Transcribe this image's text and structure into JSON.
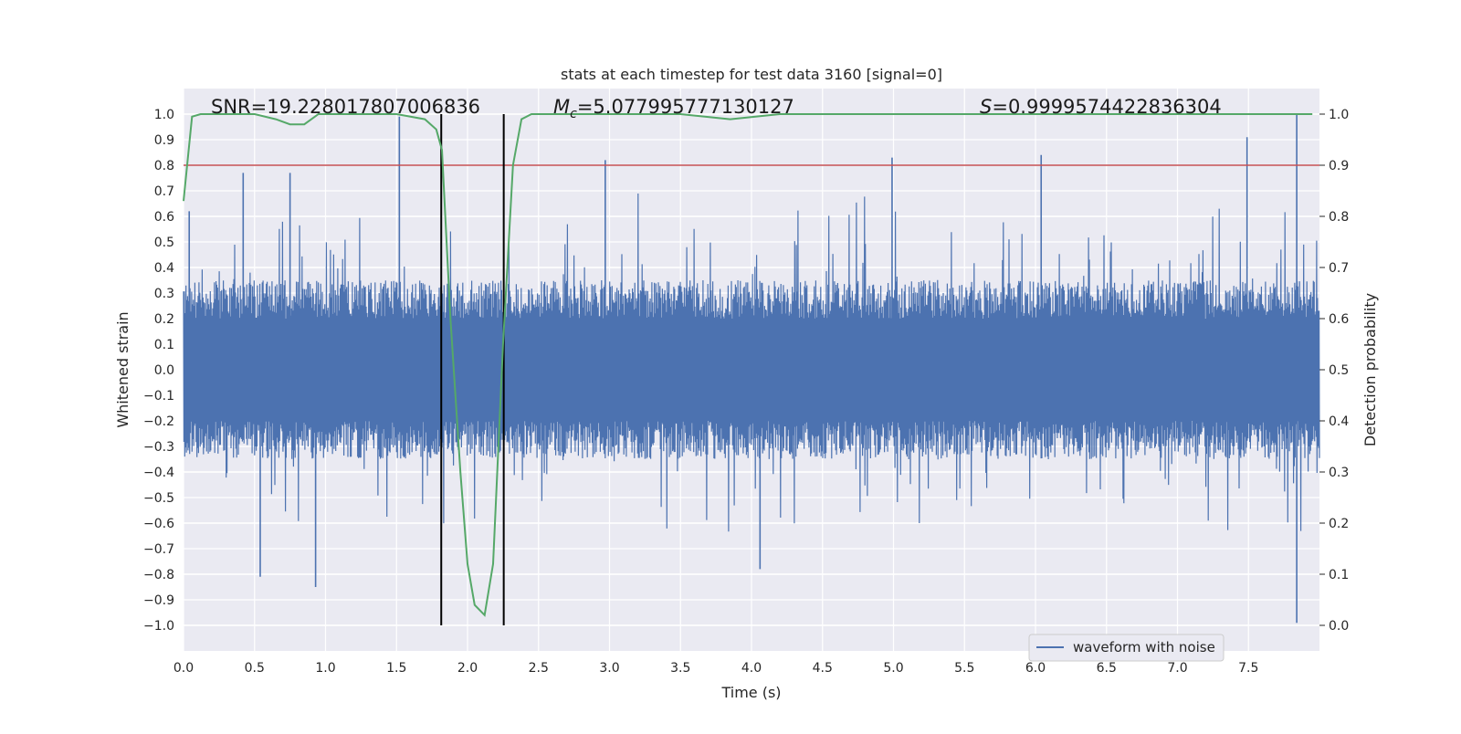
{
  "chart_data": {
    "type": "line",
    "title": "stats at each timestep for test data 3160 [signal=0]",
    "xlabel": "Time (s)",
    "ylabel_left": "Whitened strain",
    "ylabel_right": "Detection probability",
    "xlim": [
      0.0,
      8.0
    ],
    "ylim_left": [
      -1.1,
      1.1
    ],
    "ylim_right": [
      -0.05,
      1.05
    ],
    "x_ticks": [
      0.0,
      0.5,
      1.0,
      1.5,
      2.0,
      2.5,
      3.0,
      3.5,
      4.0,
      4.5,
      5.0,
      5.5,
      6.0,
      6.5,
      7.0,
      7.5
    ],
    "x_tick_labels": [
      "0.0",
      "0.5",
      "1.0",
      "1.5",
      "2.0",
      "2.5",
      "3.0",
      "3.5",
      "4.0",
      "4.5",
      "5.0",
      "5.5",
      "6.0",
      "6.5",
      "7.0",
      "7.5"
    ],
    "y_left_ticks": [
      1.0,
      0.9,
      0.8,
      0.7,
      0.6,
      0.5,
      0.4,
      0.3,
      0.2,
      0.1,
      0.0,
      -0.1,
      -0.2,
      -0.3,
      -0.4,
      -0.5,
      -0.6,
      -0.7,
      -0.8,
      -0.9,
      -1.0
    ],
    "y_left_tick_labels": [
      "1.0",
      "0.9",
      "0.8",
      "0.7",
      "0.6",
      "0.5",
      "0.4",
      "0.3",
      "0.2",
      "0.1",
      "0.0",
      "−0.1",
      "−0.2",
      "−0.3",
      "−0.4",
      "−0.5",
      "−0.6",
      "−0.7",
      "−0.8",
      "−0.9",
      "−1.0"
    ],
    "y_right_ticks": [
      1.0,
      0.9,
      0.8,
      0.7,
      0.6,
      0.5,
      0.4,
      0.3,
      0.2,
      0.1,
      0.0
    ],
    "y_right_tick_labels": [
      "1.0",
      "0.9",
      "0.8",
      "0.7",
      "0.6",
      "0.5",
      "0.4",
      "0.3",
      "0.2",
      "0.1",
      "0.0"
    ],
    "annotations": {
      "snr": "SNR=19.228017807006836",
      "mc_symbol": "M",
      "mc_subscript": "c",
      "mc_value": "=5.077995777130127",
      "s_symbol": "S",
      "s_value": "=0.9999574422836304"
    },
    "threshold": {
      "value": 0.9,
      "axis": "right",
      "color": "#c44e52"
    },
    "vertical_markers": [
      1.815,
      2.255
    ],
    "vertical_marker_range_left": [
      -1.0,
      1.0
    ],
    "waveform": {
      "name": "waveform with noise",
      "color": "#4c72b0",
      "duration": 8.0,
      "samples": 2800,
      "typical_abs_max": 0.33,
      "visible_peaks": [
        {
          "t": 0.04,
          "v": 0.62
        },
        {
          "t": 0.42,
          "v": 0.77
        },
        {
          "t": 0.54,
          "v": -0.81
        },
        {
          "t": 0.75,
          "v": 0.77
        },
        {
          "t": 0.93,
          "v": -0.85
        },
        {
          "t": 1.52,
          "v": 0.99
        },
        {
          "t": 2.97,
          "v": 0.82
        },
        {
          "t": 4.06,
          "v": -0.78
        },
        {
          "t": 4.99,
          "v": 0.83
        },
        {
          "t": 6.04,
          "v": 0.84
        },
        {
          "t": 7.49,
          "v": 0.91
        },
        {
          "t": 7.84,
          "v": 1.0
        },
        {
          "t": 7.84,
          "v": -0.99
        }
      ]
    },
    "probability": {
      "color": "#55a868",
      "x": [
        0.0,
        0.06,
        0.12,
        0.25,
        0.5,
        0.65,
        0.75,
        0.85,
        0.95,
        1.5,
        1.7,
        1.78,
        1.82,
        1.88,
        1.95,
        2.0,
        2.05,
        2.12,
        2.18,
        2.25,
        2.32,
        2.38,
        2.45,
        2.6,
        3.5,
        3.85,
        4.2,
        4.5,
        7.95
      ],
      "y": [
        0.83,
        0.995,
        1.0,
        1.0,
        1.0,
        0.99,
        0.98,
        0.98,
        1.0,
        1.0,
        0.99,
        0.97,
        0.93,
        0.6,
        0.3,
        0.12,
        0.04,
        0.02,
        0.12,
        0.55,
        0.9,
        0.99,
        1.0,
        1.0,
        1.0,
        0.99,
        1.0,
        1.0,
        1.0
      ]
    },
    "legend": {
      "entries": [
        "waveform with noise"
      ],
      "placement": "bottom-right"
    }
  }
}
